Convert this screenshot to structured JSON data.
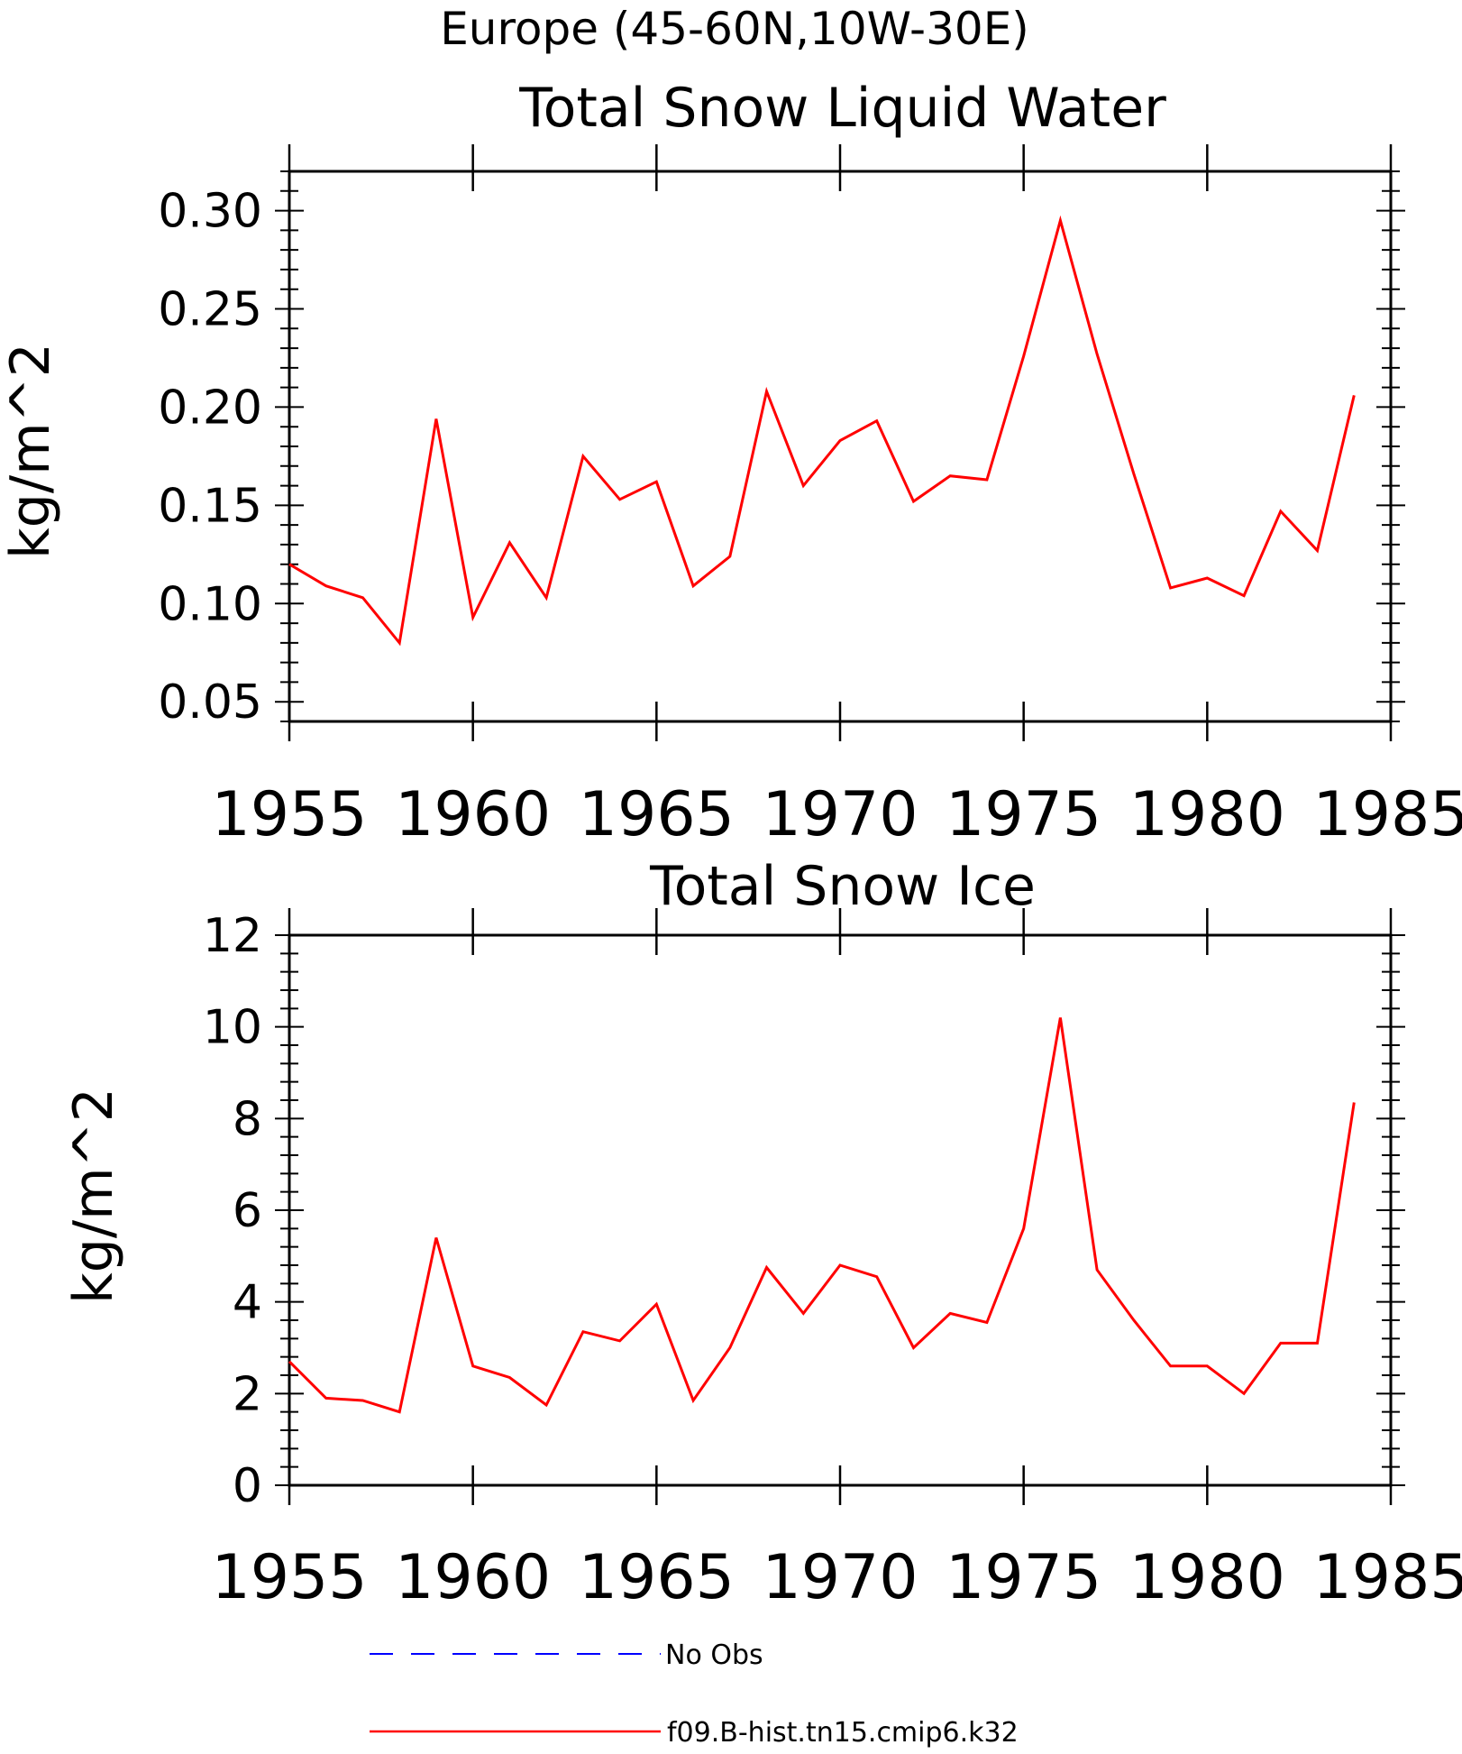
{
  "figure": {
    "suptitle": "Europe (45-60N,10W-30E)"
  },
  "legend": [
    {
      "label": "No Obs",
      "color": "#0000ff",
      "dash": true
    },
    {
      "label": "f09.B-hist.tn15.cmip6.k32",
      "color": "#ff0000",
      "dash": false
    }
  ],
  "chart_data": [
    {
      "type": "line",
      "title": "Total Snow Liquid Water",
      "xlabel": "",
      "ylabel": "kg/m^2",
      "xlim": [
        1955,
        1985
      ],
      "ylim": [
        0.04,
        0.32
      ],
      "xticks": [
        "1955",
        "1960",
        "1965",
        "1970",
        "1975",
        "1980",
        "1985"
      ],
      "yticks": [
        "0.05",
        "0.10",
        "0.15",
        "0.20",
        "0.25",
        "0.30"
      ],
      "grid": false,
      "series": [
        {
          "name": "f09.B-hist.tn15.cmip6.k32",
          "color": "#ff0000",
          "x": [
            1955,
            1956,
            1957,
            1958,
            1959,
            1960,
            1961,
            1962,
            1963,
            1964,
            1965,
            1966,
            1967,
            1968,
            1969,
            1970,
            1971,
            1972,
            1973,
            1974,
            1975,
            1976,
            1977,
            1978,
            1979,
            1980,
            1981,
            1982,
            1983,
            1984
          ],
          "values": [
            0.12,
            0.109,
            0.103,
            0.08,
            0.194,
            0.093,
            0.131,
            0.103,
            0.175,
            0.153,
            0.162,
            0.109,
            0.124,
            0.208,
            0.16,
            0.183,
            0.193,
            0.152,
            0.165,
            0.163,
            0.226,
            0.295,
            0.227,
            0.166,
            0.108,
            0.113,
            0.104,
            0.147,
            0.127,
            0.206
          ]
        }
      ]
    },
    {
      "type": "line",
      "title": "Total Snow Ice",
      "xlabel": "",
      "ylabel": "kg/m^2",
      "xlim": [
        1955,
        1985
      ],
      "ylim": [
        0,
        12
      ],
      "xticks": [
        "1955",
        "1960",
        "1965",
        "1970",
        "1975",
        "1980",
        "1985"
      ],
      "yticks": [
        "0",
        "2",
        "4",
        "6",
        "8",
        "10",
        "12"
      ],
      "grid": false,
      "series": [
        {
          "name": "f09.B-hist.tn15.cmip6.k32",
          "color": "#ff0000",
          "x": [
            1955,
            1956,
            1957,
            1958,
            1959,
            1960,
            1961,
            1962,
            1963,
            1964,
            1965,
            1966,
            1967,
            1968,
            1969,
            1970,
            1971,
            1972,
            1973,
            1974,
            1975,
            1976,
            1977,
            1978,
            1979,
            1980,
            1981,
            1982,
            1983,
            1984
          ],
          "values": [
            2.7,
            1.9,
            1.85,
            1.6,
            5.4,
            2.6,
            2.35,
            1.75,
            3.35,
            3.15,
            3.95,
            1.85,
            3.0,
            4.75,
            3.75,
            4.8,
            4.55,
            3.0,
            3.75,
            3.55,
            5.6,
            10.2,
            4.7,
            3.6,
            2.6,
            2.6,
            2.0,
            3.1,
            3.1,
            8.35
          ]
        }
      ]
    }
  ]
}
